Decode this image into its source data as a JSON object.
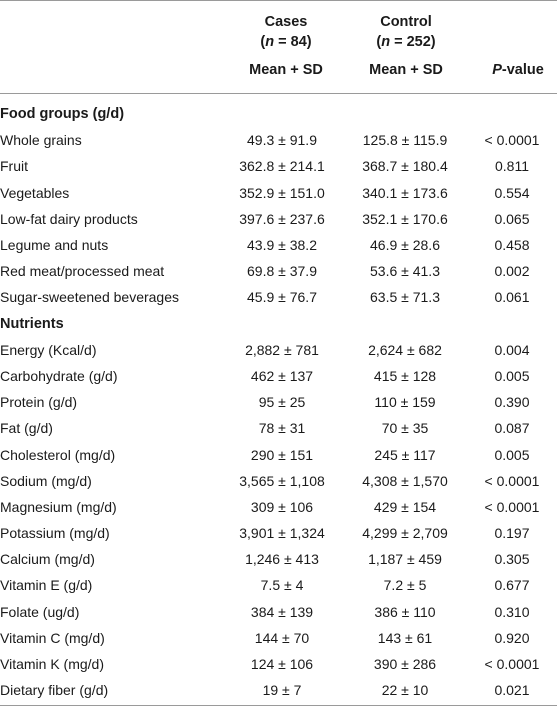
{
  "header": {
    "cases_label": "Cases",
    "cases_open": "(",
    "cases_n": "n",
    "cases_close": " = 84)",
    "control_label": "Control",
    "control_open": "(",
    "control_n": "n",
    "control_close": " = 252)",
    "cases_sub": "Mean + SD",
    "control_sub": "Mean + SD",
    "pvalue_p": "P",
    "pvalue_rest": "-value"
  },
  "sections": [
    {
      "title": "Food groups (g/d)",
      "rows": [
        {
          "label": "Whole grains",
          "cases": "49.3 ± 91.9",
          "control": "125.8 ± 115.9",
          "p": "< 0.0001"
        },
        {
          "label": "Fruit",
          "cases": "362.8 ± 214.1",
          "control": "368.7 ± 180.4",
          "p": "0.811"
        },
        {
          "label": "Vegetables",
          "cases": "352.9 ± 151.0",
          "control": "340.1 ± 173.6",
          "p": "0.554"
        },
        {
          "label": "Low-fat dairy products",
          "cases": "397.6 ± 237.6",
          "control": "352.1 ± 170.6",
          "p": "0.065"
        },
        {
          "label": "Legume and nuts",
          "cases": "43.9 ± 38.2",
          "control": "46.9 ± 28.6",
          "p": "0.458"
        },
        {
          "label": "Red meat/processed meat",
          "cases": "69.8 ± 37.9",
          "control": "53.6 ± 41.3",
          "p": "0.002"
        },
        {
          "label": "Sugar-sweetened beverages",
          "cases": "45.9 ± 76.7",
          "control": "63.5 ± 71.3",
          "p": "0.061"
        }
      ]
    },
    {
      "title": "Nutrients",
      "rows": [
        {
          "label": "Energy (Kcal/d)",
          "cases": "2,882 ± 781",
          "control": "2,624 ± 682",
          "p": "0.004"
        },
        {
          "label": "Carbohydrate (g/d)",
          "cases": "462 ± 137",
          "control": "415 ± 128",
          "p": "0.005"
        },
        {
          "label": "Protein (g/d)",
          "cases": "95 ± 25",
          "control": "110 ± 159",
          "p": "0.390"
        },
        {
          "label": "Fat (g/d)",
          "cases": "78 ± 31",
          "control": "70 ± 35",
          "p": "0.087"
        },
        {
          "label": "Cholesterol (mg/d)",
          "cases": "290 ± 151",
          "control": "245 ± 117",
          "p": "0.005"
        },
        {
          "label": "Sodium (mg/d)",
          "cases": "3,565 ± 1,108",
          "control": "4,308 ± 1,570",
          "p": "< 0.0001"
        },
        {
          "label": "Magnesium (mg/d)",
          "cases": "309 ± 106",
          "control": "429 ± 154",
          "p": "< 0.0001"
        },
        {
          "label": "Potassium (mg/d)",
          "cases": "3,901 ± 1,324",
          "control": "4,299 ± 2,709",
          "p": "0.197"
        },
        {
          "label": "Calcium (mg/d)",
          "cases": "1,246 ± 413",
          "control": "1,187 ± 459",
          "p": "0.305"
        },
        {
          "label": "Vitamin E (g/d)",
          "cases": "7.5 ± 4",
          "control": "7.2 ± 5",
          "p": "0.677"
        },
        {
          "label": "Folate (ug/d)",
          "cases": "384 ± 139",
          "control": "386 ± 110",
          "p": "0.310"
        },
        {
          "label": "Vitamin C (mg/d)",
          "cases": "144 ± 70",
          "control": "143 ± 61",
          "p": "0.920"
        },
        {
          "label": "Vitamin K (mg/d)",
          "cases": "124 ± 106",
          "control": "390 ± 286",
          "p": "< 0.0001"
        },
        {
          "label": "Dietary fiber (g/d)",
          "cases": "19 ± 7",
          "control": "22 ± 10",
          "p": "0.021"
        }
      ]
    }
  ]
}
